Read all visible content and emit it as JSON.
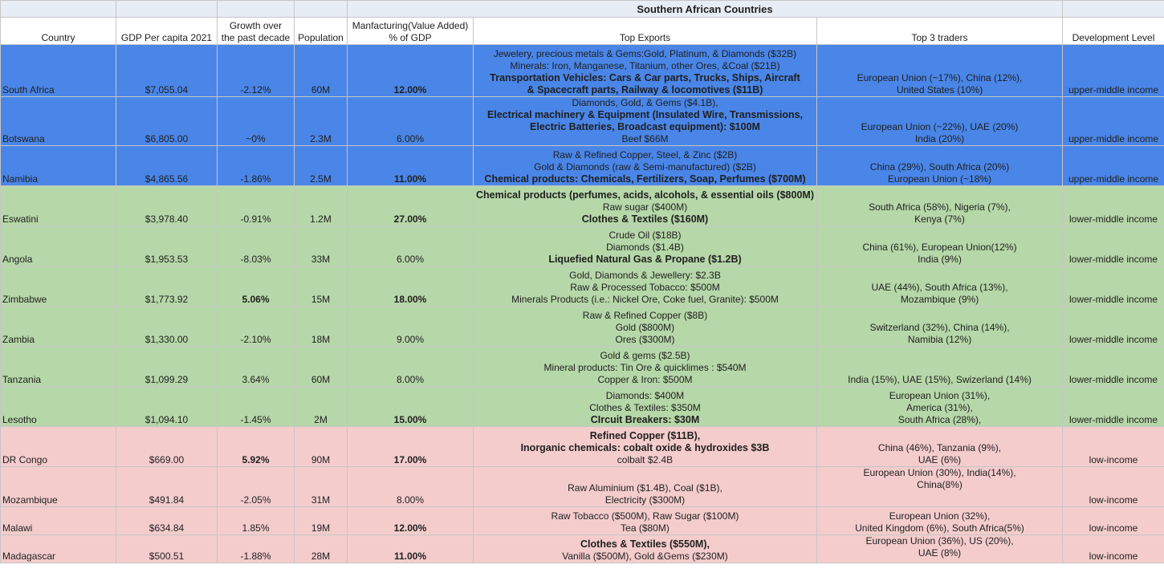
{
  "title": "Southern African Countries",
  "headers": {
    "country": "Country",
    "gdp": "GDP Per capita 2021",
    "growth_line1": "Growth over",
    "growth_line2": "the past decade",
    "population": "Population",
    "manuf_line1": "Manfacturing(Value Added)",
    "manuf_line2": "% of GDP",
    "exports": "Top Exports",
    "traders": "Top 3 traders",
    "level": "Development Level"
  },
  "colors": {
    "upper_middle": "#4a86e8",
    "lower_middle": "#b6d7a8",
    "low": "#f4cccc"
  },
  "rows": [
    {
      "country": "South Africa",
      "gdp": "$7,055.04",
      "growth": "-2.12%",
      "growth_bold": false,
      "population": "60M",
      "manuf": "12.00%",
      "manuf_bold": true,
      "exports": [
        {
          "text": "Jewelery, precious metals & Gems:Gold, Platinum, & Diamonds ($32B)",
          "bold": false
        },
        {
          "text": "Minerals: Iron, Manganese, Titanium, other Ores, &Coal ($21B)",
          "bold": false
        },
        {
          "text": "Transportation Vehicles: Cars & Car parts, Trucks, Ships, Aircraft",
          "bold": true
        },
        {
          "text": "& Spacecraft parts, Railway & locomotives ($11B)",
          "bold": true
        }
      ],
      "traders": [
        "European Union (~17%), China (12%),",
        "United States (10%)"
      ],
      "level": "upper-middle income",
      "tier": "blue"
    },
    {
      "country": "Botswana",
      "gdp": "$6,805.00",
      "growth": "~0%",
      "growth_bold": false,
      "population": "2.3M",
      "manuf": "6.00%",
      "manuf_bold": false,
      "exports": [
        {
          "text": "Diamonds, Gold, & Gems ($4.1B),",
          "bold": false
        },
        {
          "text": "Electrical machinery & Equipment  (Insulated Wire, Transmissions,",
          "bold": true
        },
        {
          "text": "Electric Batteries, Broadcast equipment): $100M",
          "bold": true
        },
        {
          "text": "Beef $66M",
          "bold": false
        }
      ],
      "traders": [
        "European Union (~22%), UAE (20%)",
        "India (20%)"
      ],
      "level": "upper-middle income",
      "tier": "blue"
    },
    {
      "country": "Namibia",
      "gdp": "$4,865.56",
      "growth": "-1.86%",
      "growth_bold": false,
      "population": "2.5M",
      "manuf": "11.00%",
      "manuf_bold": true,
      "exports": [
        {
          "text": "Raw & Refined Copper, Steel, & Zinc ($2B)",
          "bold": false
        },
        {
          "text": "Gold & Diamonds (raw & Semi-manufactured) ($2B)",
          "bold": false
        },
        {
          "text": "Chemical products: Chemicals, Fertilizers, Soap, Perfumes ($700M)",
          "bold": true
        }
      ],
      "traders": [
        "China (29%), South Africa (20%)",
        "European Union (~18%)"
      ],
      "level": "upper-middle income",
      "tier": "blue"
    },
    {
      "country": "Eswatini",
      "gdp": "$3,978.40",
      "growth": "-0.91%",
      "growth_bold": false,
      "population": "1.2M",
      "manuf": "27.00%",
      "manuf_bold": true,
      "exports": [
        {
          "text": "Chemical products (perfumes, acids, alcohols, & essential oils ($800M)",
          "bold": true
        },
        {
          "text": "Raw sugar ($400M)",
          "bold": false
        },
        {
          "text": "Clothes & Textiles ($160M)",
          "bold": true
        }
      ],
      "traders": [
        "South Africa (58%), Nigeria (7%),",
        "Kenya (7%)"
      ],
      "level": "lower-middle income",
      "tier": "green"
    },
    {
      "country": "Angola",
      "gdp": "$1,953.53",
      "growth": "-8.03%",
      "growth_bold": false,
      "population": "33M",
      "manuf": "6.00%",
      "manuf_bold": false,
      "exports": [
        {
          "text": "Crude Oil ($18B)",
          "bold": false
        },
        {
          "text": "Diamonds ($1.4B)",
          "bold": false
        },
        {
          "text": "Liquefied Natural Gas & Propane ($1.2B)",
          "bold": true
        }
      ],
      "traders": [
        "China (61%), European Union(12%)",
        "India (9%)"
      ],
      "level": "lower-middle income",
      "tier": "green"
    },
    {
      "country": "Zimbabwe",
      "gdp": "$1,773.92",
      "growth": "5.06%",
      "growth_bold": true,
      "population": "15M",
      "manuf": "18.00%",
      "manuf_bold": true,
      "exports": [
        {
          "text": "Gold, Diamonds & Jewellery: $2.3B",
          "bold": false
        },
        {
          "text": "Raw & Processed Tobacco: $500M",
          "bold": false
        },
        {
          "text": "Minerals Products (i.e.: Nickel Ore,  Coke fuel, Granite): $500M",
          "bold": false
        }
      ],
      "traders": [
        "UAE (44%), South Africa (13%),",
        "Mozambique (9%)"
      ],
      "level": "lower-middle income",
      "tier": "green"
    },
    {
      "country": "Zambia",
      "gdp": "$1,330.00",
      "growth": "-2.10%",
      "growth_bold": false,
      "population": "18M",
      "manuf": "9.00%",
      "manuf_bold": false,
      "exports": [
        {
          "text": "Raw & Refined Copper ($8B)",
          "bold": false
        },
        {
          "text": "Gold ($800M)",
          "bold": false
        },
        {
          "text": "Ores ($300M)",
          "bold": false
        }
      ],
      "traders": [
        "Switzerland (32%), China (14%),",
        "Namibia (12%)"
      ],
      "level": "lower-middle income",
      "tier": "green"
    },
    {
      "country": "Tanzania",
      "gdp": "$1,099.29",
      "growth": "3.64%",
      "growth_bold": false,
      "population": "60M",
      "manuf": "8.00%",
      "manuf_bold": false,
      "exports": [
        {
          "text": "Gold & gems ($2.5B)",
          "bold": false
        },
        {
          "text": "Mineral products: Tin Ore & quicklimes : $540M",
          "bold": false
        },
        {
          "text": "Copper & Iron: $500M",
          "bold": false
        }
      ],
      "traders": [
        "India (15%), UAE (15%), Swizerland (14%)"
      ],
      "level": "lower-middle income",
      "tier": "green"
    },
    {
      "country": "Lesotho",
      "gdp": "$1,094.10",
      "growth": "-1.45%",
      "growth_bold": false,
      "population": "2M",
      "manuf": "15.00%",
      "manuf_bold": true,
      "exports": [
        {
          "text": "Diamonds: $400M",
          "bold": false
        },
        {
          "text": "Clothes & Textiles: $350M",
          "bold": false
        },
        {
          "text": "CIrcuit Breakers: $30M",
          "bold": true
        }
      ],
      "traders": [
        "European Union (31%),",
        "America (31%),",
        "South Africa (28%),"
      ],
      "level": "lower-middle income",
      "tier": "green"
    },
    {
      "country": "DR Congo",
      "gdp": "$669.00",
      "growth": "5.92%",
      "growth_bold": true,
      "population": "90M",
      "manuf": "17.00%",
      "manuf_bold": true,
      "exports": [
        {
          "text": "Refined Copper ($11B),",
          "bold": true
        },
        {
          "text": "Inorganic chemicals: cobalt oxide & hydroxides $3B",
          "bold": true
        },
        {
          "text": "colbalt $2.4B",
          "bold": false
        }
      ],
      "traders": [
        "China (46%), Tanzania (9%),",
        "UAE (6%)"
      ],
      "level": "low-income",
      "tier": "red"
    },
    {
      "country": "Mozambique",
      "gdp": "$491.84",
      "growth": "-2.05%",
      "growth_bold": false,
      "population": "31M",
      "manuf": "8.00%",
      "manuf_bold": false,
      "exports": [
        {
          "text": "Raw Aluminium ($1.4B), Coal ($1B),",
          "bold": false
        },
        {
          "text": "Electricity ($300M)",
          "bold": false
        }
      ],
      "traders": [
        "European Union (30%), India(14%),",
        "China(8%)"
      ],
      "traders_valign": "top",
      "level": "low-income",
      "tier": "red"
    },
    {
      "country": "Malawi",
      "gdp": "$634.84",
      "growth": "1.85%",
      "growth_bold": false,
      "population": "19M",
      "manuf": "12.00%",
      "manuf_bold": true,
      "exports": [
        {
          "text": "Raw Tobacco ($500M), Raw Sugar ($100M)",
          "bold": false
        },
        {
          "text": "Tea ($80M)",
          "bold": false
        }
      ],
      "traders": [
        "European Union (32%),",
        "United Kingdom (6%), South Africa(5%)"
      ],
      "level": "low-income",
      "tier": "red"
    },
    {
      "country": "Madagascar",
      "gdp": "$500.51",
      "growth": "-1.88%",
      "growth_bold": false,
      "population": "28M",
      "manuf": "11.00%",
      "manuf_bold": true,
      "exports": [
        {
          "text": "Clothes & Textiles ($550M),",
          "bold": true
        },
        {
          "text": "Vanilla ($500M), Gold &Gems ($230M)",
          "bold": false
        }
      ],
      "traders": [
        "European Union (36%), US (20%),",
        "UAE (8%)"
      ],
      "traders_valign": "top",
      "level": "low-income",
      "tier": "red"
    }
  ]
}
